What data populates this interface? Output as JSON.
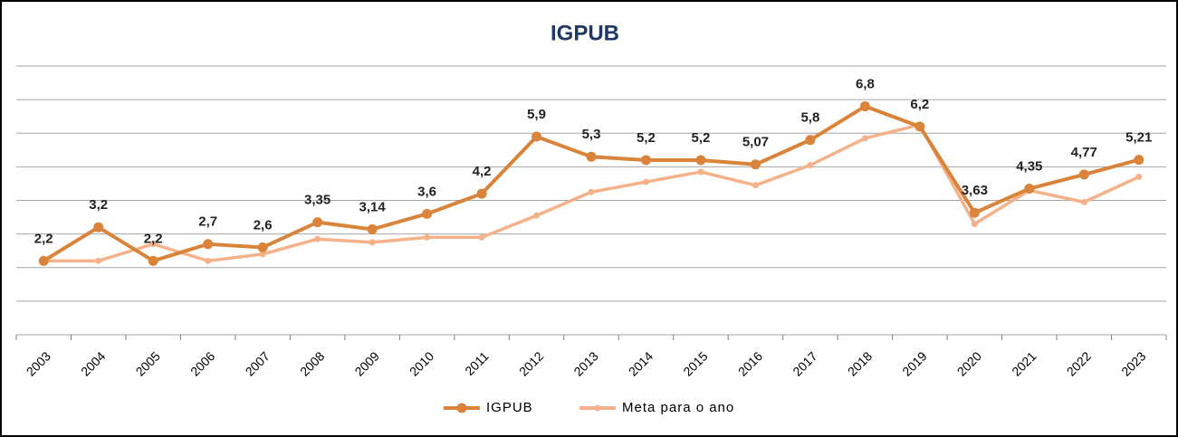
{
  "chart_data": {
    "type": "line",
    "title": "IGPUB",
    "categories": [
      "2003",
      "2004",
      "2005",
      "2006",
      "2007",
      "2008",
      "2009",
      "2010",
      "2011",
      "2012",
      "2013",
      "2014",
      "2015",
      "2016",
      "2017",
      "2018",
      "2019",
      "2020",
      "2021",
      "2022",
      "2023"
    ],
    "series": [
      {
        "name": "IGPUB",
        "color": "#d9843a",
        "values": [
          2.2,
          3.2,
          2.2,
          2.7,
          2.6,
          3.35,
          3.14,
          3.6,
          4.2,
          5.9,
          5.3,
          5.2,
          5.2,
          5.07,
          5.8,
          6.8,
          6.2,
          3.63,
          4.35,
          4.77,
          5.21
        ],
        "value_labels": [
          "2,2",
          "3,2",
          "2,2",
          "2,7",
          "2,6",
          "3,35",
          "3,14",
          "3,6",
          "4,2",
          "5,9",
          "5,3",
          "5,2",
          "5,2",
          "5,07",
          "5,8",
          "6,8",
          "6,2",
          "3,63",
          "4,35",
          "4,77",
          "5,21"
        ]
      },
      {
        "name": "Meta para o ano",
        "color": "#f5b28a",
        "values": [
          2.2,
          2.2,
          2.7,
          2.2,
          2.4,
          2.85,
          2.75,
          2.9,
          2.9,
          3.55,
          4.25,
          4.55,
          4.85,
          4.45,
          5.05,
          5.85,
          6.25,
          3.3,
          4.3,
          3.95,
          4.7
        ]
      }
    ],
    "ylim": [
      0,
      8
    ],
    "yticks": [
      0,
      1,
      2,
      3,
      4,
      5,
      6,
      7,
      8
    ],
    "grid": true,
    "legend": "bottom"
  }
}
